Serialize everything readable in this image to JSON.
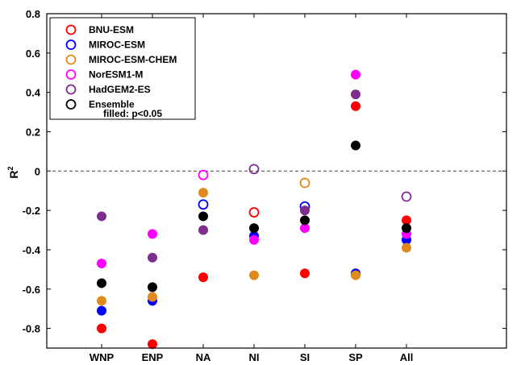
{
  "chart_data": {
    "type": "scatter",
    "categories": [
      "WNP",
      "ENP",
      "NA",
      "NI",
      "SI",
      "SP",
      "All"
    ],
    "ylabel": "R",
    "ylabel_superscript": "2",
    "ylim": [
      -0.9,
      0.8
    ],
    "yticks": [
      -0.8,
      -0.6,
      -0.4,
      -0.2,
      0,
      0.2,
      0.4,
      0.6,
      0.8
    ],
    "ytick_labels": [
      "-0.8",
      "-0.6",
      "-0.4",
      "-0.2",
      "0",
      "0.2",
      "0.4",
      "0.6",
      "0.8"
    ],
    "zero_line": "dashed",
    "grid": false,
    "legend_position": "top-left",
    "legend_note": "filled: p<0.05",
    "series": [
      {
        "name": "BNU-ESM",
        "color": "#ff0000",
        "values": [
          -0.8,
          -0.88,
          -0.54,
          -0.21,
          -0.52,
          0.33,
          -0.25
        ],
        "filled": [
          true,
          true,
          true,
          false,
          true,
          true,
          true
        ]
      },
      {
        "name": "MIROC-ESM",
        "color": "#0000ff",
        "values": [
          -0.71,
          -0.66,
          -0.17,
          -0.33,
          -0.18,
          -0.52,
          -0.35
        ],
        "filled": [
          true,
          true,
          false,
          true,
          false,
          true,
          true
        ]
      },
      {
        "name": "MIROC-ESM-CHEM",
        "color": "#e08a1e",
        "values": [
          -0.66,
          -0.64,
          -0.11,
          -0.53,
          -0.06,
          -0.53,
          -0.39
        ],
        "filled": [
          true,
          true,
          true,
          true,
          false,
          true,
          true
        ]
      },
      {
        "name": "NorESM1-M",
        "color": "#ff00ff",
        "values": [
          -0.47,
          -0.32,
          -0.02,
          -0.35,
          -0.29,
          0.49,
          -0.32
        ],
        "filled": [
          true,
          true,
          false,
          true,
          true,
          true,
          true
        ]
      },
      {
        "name": "HadGEM2-ES",
        "color": "#7e2f8e",
        "values": [
          -0.23,
          -0.44,
          -0.3,
          0.01,
          -0.2,
          0.39,
          -0.13
        ],
        "filled": [
          true,
          true,
          true,
          false,
          true,
          true,
          false
        ]
      },
      {
        "name": "Ensemble",
        "color": "#000000",
        "values": [
          -0.57,
          -0.59,
          -0.23,
          -0.29,
          -0.25,
          0.13,
          -0.29
        ],
        "filled": [
          true,
          true,
          true,
          true,
          true,
          true,
          true
        ]
      }
    ]
  }
}
